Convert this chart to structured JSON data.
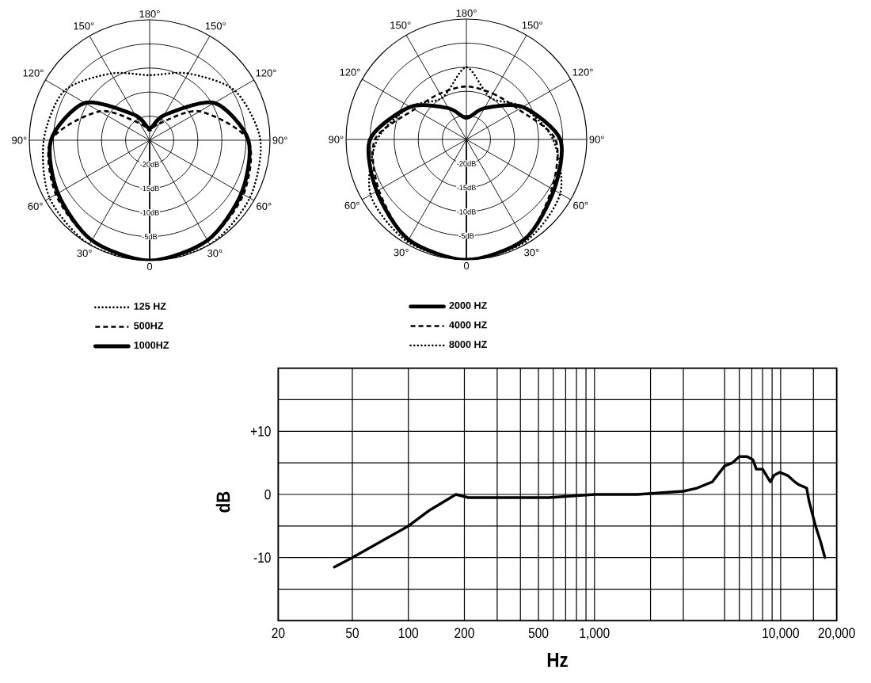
{
  "chart_data": [
    {
      "type": "radar",
      "categories": [
        "180°",
        "150°",
        "120°",
        "90°",
        "60°",
        "30°",
        "0",
        "30°",
        "60°",
        "90°",
        "120°",
        "150°"
      ],
      "series": [
        {
          "name": "125 HZ",
          "color": "#000000",
          "line_style": "dotted",
          "values": [
            -11.5,
            -9,
            -4.5,
            -2,
            -1,
            0,
            0,
            0,
            -1,
            -3,
            -4.5,
            -9
          ]
        },
        {
          "name": "500HZ",
          "color": "#000000",
          "line_style": "dashed",
          "values": [
            -23,
            -21,
            -13,
            -4.5,
            -2.5,
            -1,
            0,
            -1,
            -2.5,
            -4.5,
            -13,
            -21
          ]
        },
        {
          "name": "1000HZ",
          "color": "#000000",
          "line_style": "solid",
          "values": [
            -22.5,
            -19,
            -9.5,
            -4.5,
            -3,
            -1,
            0,
            -1,
            -3,
            -4.5,
            -9.5,
            -19
          ]
        }
      ],
      "ylim": [
        -25,
        0
      ],
      "yticks": [
        {
          "value": -20,
          "label": "-20dB"
        },
        {
          "value": -15,
          "label": "-15dB"
        },
        {
          "value": -10,
          "label": "-10dB"
        },
        {
          "value": -5,
          "label": "-5dB"
        }
      ],
      "grid": true,
      "legend": "bottom"
    },
    {
      "type": "radar",
      "categories": [
        "180°",
        "150°",
        "120°",
        "90°",
        "60°",
        "30°",
        "0",
        "30°",
        "60°",
        "90°",
        "120°",
        "150°"
      ],
      "series": [
        {
          "name": "2000 HZ",
          "color": "#000000",
          "line_style": "solid",
          "values": [
            -20.5,
            -17.5,
            -11.5,
            -5.5,
            -4,
            -1,
            0,
            -1,
            -3.5,
            -5,
            -11.5,
            -17.5
          ]
        },
        {
          "name": "4000 HZ",
          "color": "#000000",
          "line_style": "dashed",
          "values": [
            -14,
            -14,
            -12.5,
            -6.5,
            -4.5,
            -1,
            0,
            -1,
            -4,
            -6,
            -12.5,
            -14
          ]
        },
        {
          "name": "8000 HZ",
          "color": "#000000",
          "line_style": "dotted",
          "values": [
            -10,
            -15,
            -11.5,
            -7,
            -2.5,
            -0.5,
            0,
            -0.5,
            -2,
            -6.5,
            -11.5,
            -15
          ]
        }
      ],
      "ylim": [
        -25,
        0
      ],
      "yticks": [
        {
          "value": -20,
          "label": "-20dB"
        },
        {
          "value": -15,
          "label": "-15dB"
        },
        {
          "value": -10,
          "label": "-10dB"
        },
        {
          "value": -5,
          "label": "-5dB"
        }
      ],
      "grid": true,
      "legend": "bottom"
    },
    {
      "type": "line",
      "x": [
        40,
        50,
        100,
        130,
        180,
        210,
        340,
        570,
        1000,
        1700,
        3000,
        3550,
        4300,
        5000,
        5500,
        6000,
        6600,
        7100,
        7400,
        8000,
        8800,
        9200,
        9900,
        10900,
        11900,
        12600,
        13800,
        14200,
        15400,
        16400,
        17300
      ],
      "values": [
        -11.5,
        -10,
        -5,
        -2.5,
        0,
        -0.5,
        -0.5,
        -0.5,
        0,
        0,
        0.5,
        1,
        2,
        4.5,
        5,
        6,
        6,
        5.5,
        4,
        4,
        2,
        3,
        3.5,
        3,
        2,
        1.5,
        1,
        -1,
        -5,
        -7.5,
        -10
      ],
      "color": "#000000",
      "xlim": [
        20,
        20000
      ],
      "ylim": [
        -20,
        20
      ],
      "log": "x",
      "xticks": [
        20,
        50,
        100,
        200,
        {
          "value": 300,
          "label": null
        },
        {
          "value": 400,
          "label": null
        },
        500,
        {
          "value": 600,
          "label": null
        },
        {
          "value": 700,
          "label": null
        },
        {
          "value": 800,
          "label": null
        },
        {
          "value": 900,
          "label": null
        },
        {
          "value": 1000,
          "label": "1,000"
        },
        {
          "value": 2000,
          "label": null
        },
        {
          "value": 3000,
          "label": null
        },
        {
          "value": 5000,
          "label": null
        },
        {
          "value": 6000,
          "label": null
        },
        {
          "value": 7000,
          "label": null
        },
        {
          "value": 8000,
          "label": null
        },
        {
          "value": 9000,
          "label": null
        },
        {
          "value": 10000,
          "label": "10,000"
        },
        {
          "value": 15000,
          "label": null
        },
        {
          "value": 20000,
          "label": "20,000"
        }
      ],
      "yticks": [
        {
          "value": -20,
          "label": null
        },
        {
          "value": -15,
          "label": null
        },
        -10,
        {
          "value": -5,
          "label": null
        },
        0,
        {
          "value": 5,
          "label": null
        },
        {
          "value": 10,
          "label": "+10"
        },
        {
          "value": 15,
          "label": null
        },
        {
          "value": 20,
          "label": null
        }
      ],
      "grid": true,
      "xlabel": "Hz",
      "ylabel": "dB"
    }
  ]
}
